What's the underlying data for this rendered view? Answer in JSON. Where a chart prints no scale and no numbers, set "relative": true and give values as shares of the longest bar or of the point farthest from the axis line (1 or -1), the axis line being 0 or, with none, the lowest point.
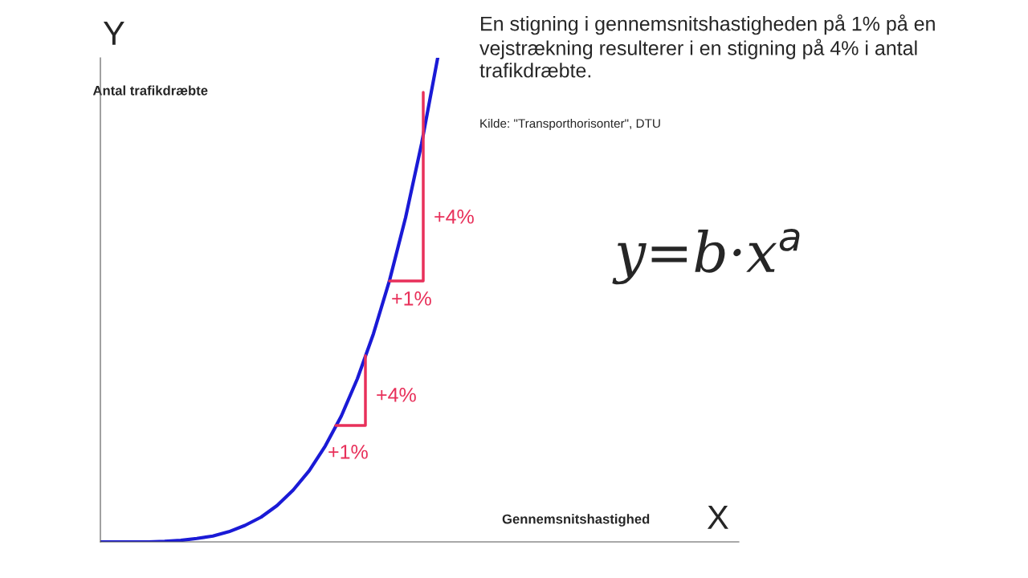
{
  "chart_data": {
    "type": "line",
    "relative": true,
    "title": "En stigning i gennemsnitshastigheden på 1% på en vejstrækning resulterer i en stigning på 4% i antal trafikdræbte.",
    "ylabel": "Antal trafikdræbte",
    "categories": [
      null,
      null,
      null,
      null,
      null,
      null,
      null,
      null,
      null,
      null,
      null,
      null,
      null,
      null,
      null,
      null,
      null,
      null,
      null,
      null,
      null,
      null
    ],
    "series": [
      {
        "color": "#1a1ad6",
        "values": [
          0,
          0,
          0,
          0,
          0.001,
          0.003,
          0.007,
          0.012,
          0.021,
          0.034,
          0.051,
          0.075,
          0.107,
          0.147,
          0.198,
          0.26,
          0.337,
          0.43,
          0.54,
          0.67,
          0.823,
          1
        ]
      }
    ],
    "annotations": [
      "Kilde: \"Transporthorisonter\", DTU",
      "Y",
      "X",
      "+1%",
      "+4%",
      "+1%",
      "+4%",
      "y=b·x$^{a}$",
      "Gennemsnitshastighed"
    ],
    "legend": false,
    "marker": "none",
    "line_style": "solid",
    "tick_labels": false
  }
}
